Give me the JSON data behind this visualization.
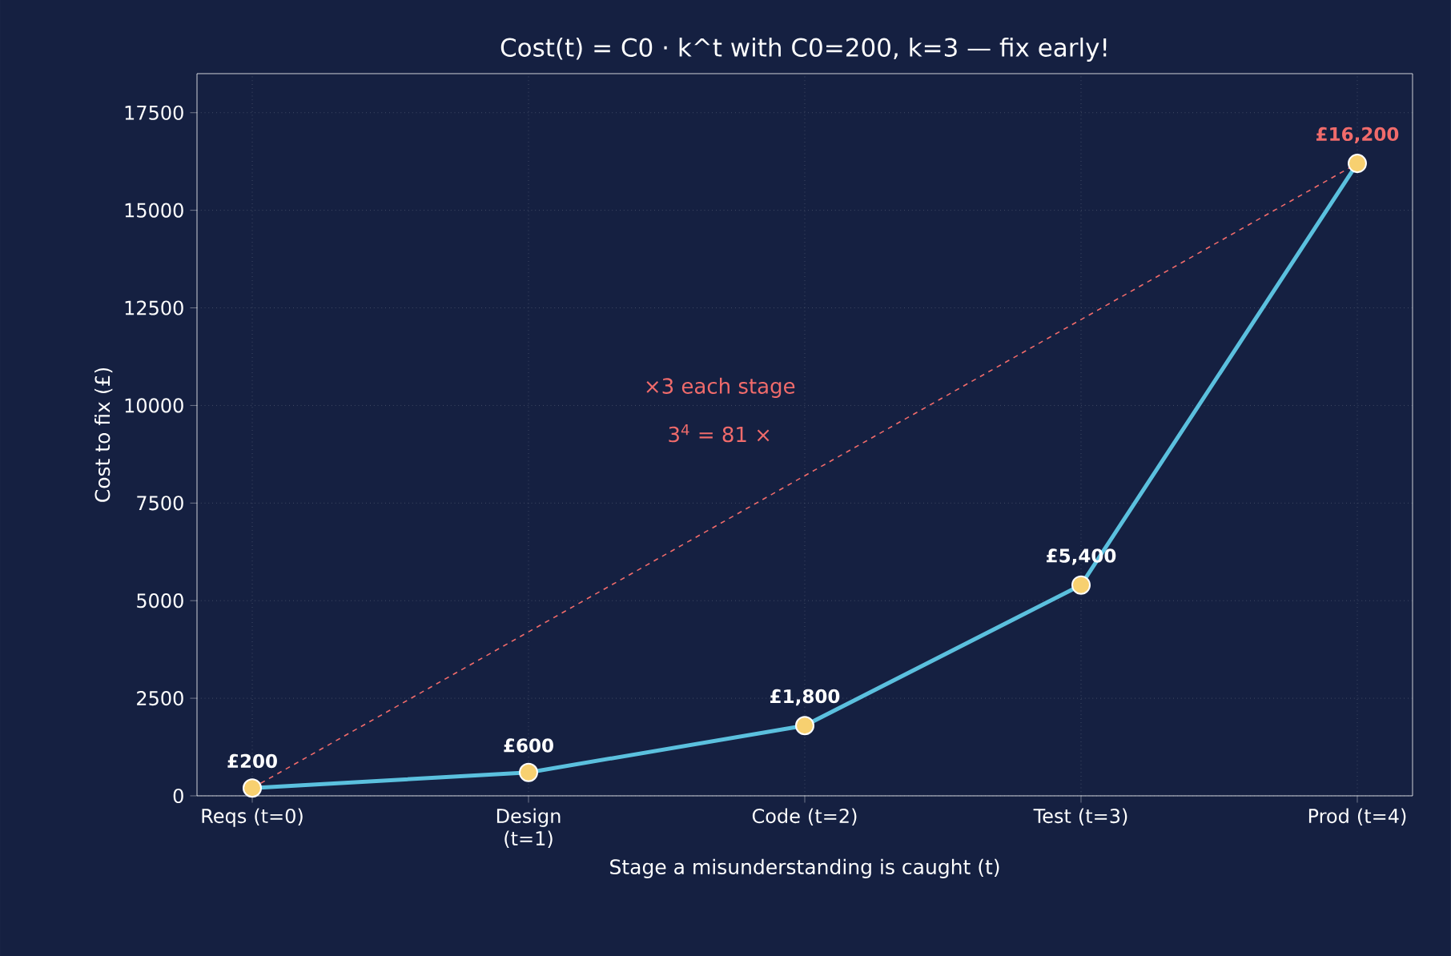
{
  "chart_data": {
    "type": "line",
    "title": "Cost(t) = C0 · k^t   with C0=200, k=3  —  fix early!",
    "xlabel": "Stage a misunderstanding is caught  (t)",
    "ylabel": "Cost to fix  (£)",
    "categories": [
      "Reqs (t=0)",
      "Design (t=1)",
      "Code (t=2)",
      "Test (t=3)",
      "Prod (t=4)"
    ],
    "series": [
      {
        "color": "#5bc0de",
        "values": [
          200,
          600,
          1800,
          5400,
          16200
        ],
        "value_labels": [
          "£200",
          "£600",
          "£1,800",
          "£5,400",
          "£16,200"
        ]
      }
    ],
    "ylim": [
      0,
      18500
    ],
    "yticks": [
      0,
      2500,
      5000,
      7500,
      10000,
      12500,
      15000,
      17500
    ],
    "grid": true,
    "marker": "circle",
    "line_style": "solid",
    "annotations": [
      "×3 each stage",
      "3$^{4}$ = 81 ×"
    ]
  }
}
